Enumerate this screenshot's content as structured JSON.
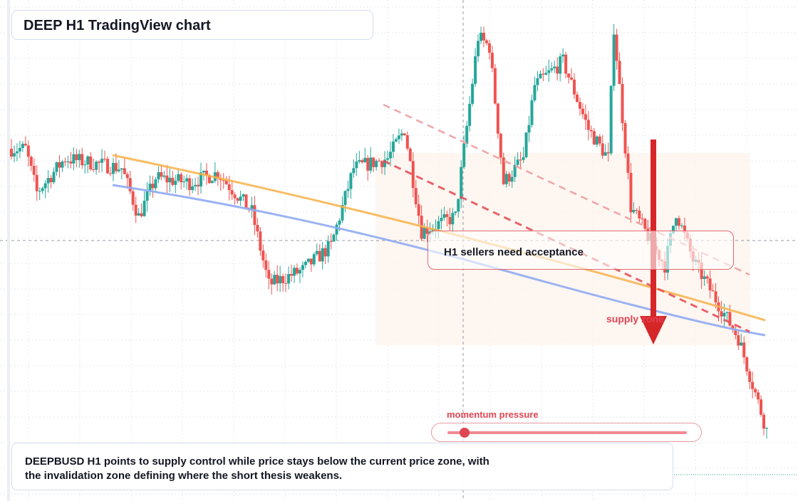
{
  "title": "DEEP H1 TradingView chart",
  "callout_text": "H1 sellers need acceptance",
  "zone_label": "supply zone",
  "momentum": {
    "label": "momentum pressure",
    "level": 0.07
  },
  "summary_line1": "DEEPBUSD H1 points to supply control while price stays below the current price zone, with",
  "summary_line2": "the invalidation zone defining where the short thesis weakens.",
  "colors": {
    "up": "#26a69a",
    "down": "#ef5350",
    "ma_orange": "#f7b24a",
    "ma_blue": "#8fabf2",
    "trend_red": "#e24a52",
    "arrow": "#d62628"
  },
  "chart_data": {
    "type": "candlestick",
    "title": "DEEP H1 TradingView chart",
    "symbol": "DEEPBUSD",
    "timeframe": "H1",
    "ylim": [
      0,
      100
    ],
    "candle_colors": {
      "up": "#26a69a",
      "down": "#ef5350"
    },
    "candles": []
  }
}
